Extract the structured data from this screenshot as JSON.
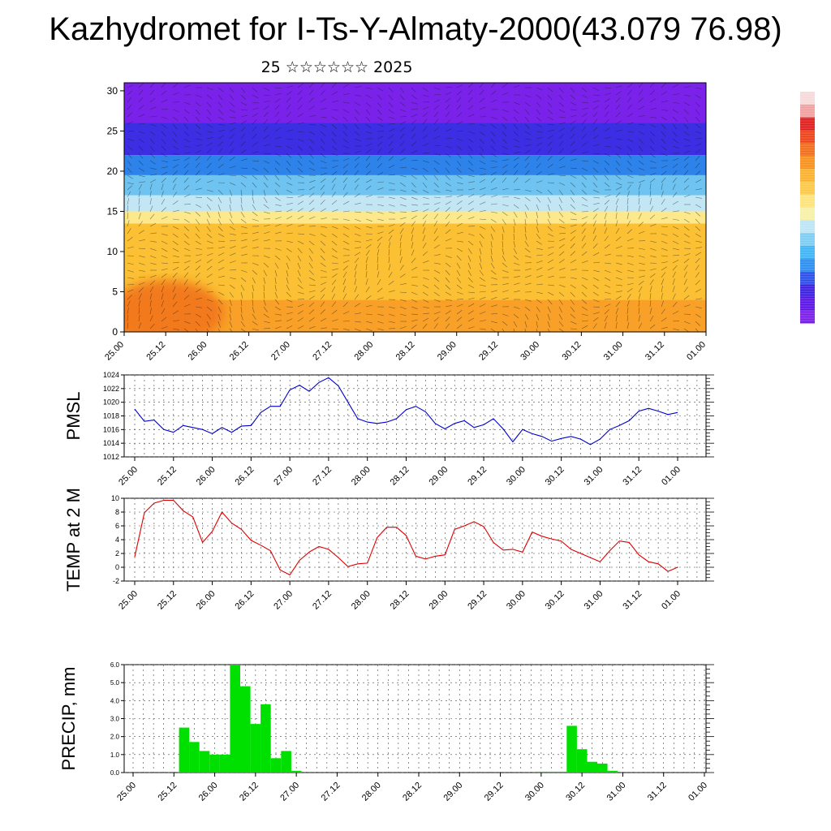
{
  "title": "Kazhydromet for I-Ts-Y-Almaty-2000(43.079 76.98)",
  "subtitle": "25 ☆☆☆☆☆☆ 2025",
  "colorbar": {
    "colors": [
      "#7a1ee8",
      "#5a14e6",
      "#3d1fe0",
      "#2a4fe8",
      "#2a8ef0",
      "#40b4f4",
      "#7ccdf2",
      "#bde4f4",
      "#f6f0a8",
      "#fde27a",
      "#fcc845",
      "#fbb02d",
      "#f8901c",
      "#f26d1a",
      "#ec4418",
      "#e01e1e",
      "#f0a0a0",
      "#f6dada"
    ]
  },
  "panel1": {
    "yticks": [
      0,
      5,
      10,
      15,
      20,
      25,
      30
    ],
    "xticks": [
      "25.00",
      "25.12",
      "26.00",
      "26.12",
      "27.00",
      "27.12",
      "28.00",
      "28.12",
      "29.00",
      "29.12",
      "30.00",
      "30.12",
      "31.00",
      "31.12",
      "01.00"
    ]
  },
  "chart_data": [
    {
      "type": "heatmap",
      "title": "Kazhydromet for I-Ts-Y-Almaty-2000(43.079 76.98)",
      "ylim": [
        0,
        31
      ],
      "x_ticks": [
        "25.00",
        "25.12",
        "26.00",
        "26.12",
        "27.00",
        "27.12",
        "28.00",
        "28.12",
        "29.00",
        "29.12",
        "30.00",
        "30.12",
        "31.00",
        "31.12",
        "01.00"
      ],
      "y_ticks": [
        0,
        5,
        10,
        15,
        20,
        25,
        30
      ],
      "bands": [
        {
          "from": 0,
          "to": 4,
          "color": "#f8a028"
        },
        {
          "from": 4,
          "to": 13.5,
          "color": "#fbc034"
        },
        {
          "from": 13.5,
          "to": 15,
          "color": "#fde88c"
        },
        {
          "from": 15,
          "to": 17,
          "color": "#c2e6f4"
        },
        {
          "from": 17,
          "to": 19.5,
          "color": "#6fc3f0"
        },
        {
          "from": 19.5,
          "to": 22,
          "color": "#2d83ea"
        },
        {
          "from": 22,
          "to": 26,
          "color": "#3c2ee2"
        },
        {
          "from": 26,
          "to": 31,
          "color": "#7a22ea"
        }
      ]
    },
    {
      "type": "line",
      "ylabel": "PMSL",
      "ylim": [
        1012,
        1024
      ],
      "y_ticks": [
        1012,
        1014,
        1016,
        1018,
        1020,
        1022,
        1024
      ],
      "x_ticks": [
        "25.00",
        "25.12",
        "26.00",
        "26.12",
        "27.00",
        "27.12",
        "28.00",
        "28.12",
        "29.00",
        "29.12",
        "30.00",
        "30.12",
        "31.00",
        "31.12",
        "01.00"
      ],
      "x_range": [
        0,
        56
      ],
      "color": "#0000cc",
      "x": [
        0,
        1,
        2,
        3,
        4,
        5,
        6,
        7,
        8,
        9,
        10,
        11,
        12,
        13,
        14,
        15,
        16,
        17,
        18,
        19,
        20,
        21,
        22,
        23,
        24,
        25,
        26,
        27,
        28,
        29,
        30,
        31,
        32,
        33,
        34,
        35,
        36,
        37,
        38,
        39,
        40,
        41,
        42,
        43,
        44,
        45,
        46,
        47,
        48,
        49,
        50,
        51,
        52,
        53,
        54,
        55,
        56
      ],
      "values": [
        1019,
        1017.2,
        1017.4,
        1016,
        1015.6,
        1016.6,
        1016.3,
        1016,
        1015.4,
        1016.3,
        1015.6,
        1016.5,
        1016.6,
        1018.5,
        1019.4,
        1019.4,
        1021.8,
        1022.5,
        1021.6,
        1022.9,
        1023.6,
        1022.4,
        1020,
        1017.6,
        1017.1,
        1016.9,
        1017.1,
        1017.6,
        1018.9,
        1019.4,
        1018.6,
        1016.9,
        1016.1,
        1016.9,
        1017.3,
        1016.3,
        1016.7,
        1017.6,
        1016.1,
        1014.2,
        1016,
        1015.4,
        1015,
        1014.3,
        1014.7,
        1015,
        1014.6,
        1013.8,
        1014.6,
        1016,
        1016.6,
        1017.3,
        1018.7,
        1019.1,
        1018.7,
        1018.2,
        1018.5
      ]
    },
    {
      "type": "line",
      "ylabel": "TEMP at 2 M",
      "ylim": [
        -2,
        10
      ],
      "y_ticks": [
        -2,
        0,
        2,
        4,
        6,
        8,
        10
      ],
      "x_ticks": [
        "25.00",
        "25.12",
        "26.00",
        "26.12",
        "27.00",
        "27.12",
        "28.00",
        "28.12",
        "29.00",
        "29.12",
        "30.00",
        "30.12",
        "31.00",
        "31.12",
        "01.00"
      ],
      "x_range": [
        0,
        56
      ],
      "color": "#dd0000",
      "x": [
        0,
        1,
        2,
        3,
        4,
        5,
        6,
        7,
        8,
        9,
        10,
        11,
        12,
        13,
        14,
        15,
        16,
        17,
        18,
        19,
        20,
        21,
        22,
        23,
        24,
        25,
        26,
        27,
        28,
        29,
        30,
        31,
        32,
        33,
        34,
        35,
        36,
        37,
        38,
        39,
        40,
        41,
        42,
        43,
        44,
        45,
        46,
        47,
        48,
        49,
        50,
        51,
        52,
        53,
        54,
        55,
        56
      ],
      "values": [
        1.5,
        7.9,
        9.3,
        9.7,
        9.7,
        8.2,
        7.3,
        3.6,
        5.2,
        8,
        6.4,
        5.5,
        3.9,
        3.2,
        2.4,
        -0.4,
        -1.1,
        1,
        2.2,
        3,
        2.6,
        1.4,
        0.1,
        0.5,
        0.6,
        4.3,
        5.8,
        5.8,
        4.6,
        1.6,
        1.2,
        1.6,
        1.8,
        5.5,
        6,
        6.6,
        5.9,
        3.6,
        2.5,
        2.6,
        2.2,
        5.1,
        4.5,
        4.1,
        3.8,
        2.6,
        2,
        1.4,
        0.8,
        2.4,
        3.8,
        3.6,
        1.8,
        0.8,
        0.5,
        -0.6,
        0
      ]
    },
    {
      "type": "bar",
      "ylabel": "PRECIP, mm",
      "ylim": [
        0,
        6
      ],
      "y_ticks": [
        "0.0",
        "1.0",
        "2.0",
        "3.0",
        "4.0",
        "5.0",
        "6.0"
      ],
      "x_ticks": [
        "25.00",
        "25.12",
        "26.00",
        "26.12",
        "27.00",
        "27.12",
        "28.00",
        "28.12",
        "29.00",
        "29.12",
        "30.00",
        "30.12",
        "31.00",
        "31.12",
        "01.00"
      ],
      "x_range": [
        0,
        56
      ],
      "color": "#00e000",
      "x": [
        0,
        1,
        2,
        3,
        4,
        5,
        6,
        7,
        8,
        9,
        10,
        11,
        12,
        13,
        14,
        15,
        16,
        17,
        18,
        19,
        20,
        21,
        22,
        23,
        24,
        25,
        26,
        27,
        28,
        29,
        30,
        31,
        32,
        33,
        34,
        35,
        36,
        37,
        38,
        39,
        40,
        41,
        42,
        43,
        44,
        45,
        46,
        47,
        48,
        49,
        50,
        51,
        52,
        53,
        54,
        55,
        56
      ],
      "values": [
        0,
        0,
        0,
        0,
        0,
        2.5,
        1.7,
        1.2,
        1,
        1,
        6,
        4.8,
        2.7,
        3.8,
        0.8,
        1.2,
        0.1,
        0,
        0,
        0,
        0,
        0,
        0,
        0,
        0,
        0,
        0,
        0,
        0,
        0,
        0,
        0,
        0,
        0,
        0,
        0,
        0,
        0,
        0,
        0,
        0.05,
        0.05,
        0.05,
        2.6,
        1.3,
        0.6,
        0.5,
        0.1,
        0,
        0,
        0,
        0,
        0,
        0,
        0,
        0,
        0
      ]
    }
  ]
}
